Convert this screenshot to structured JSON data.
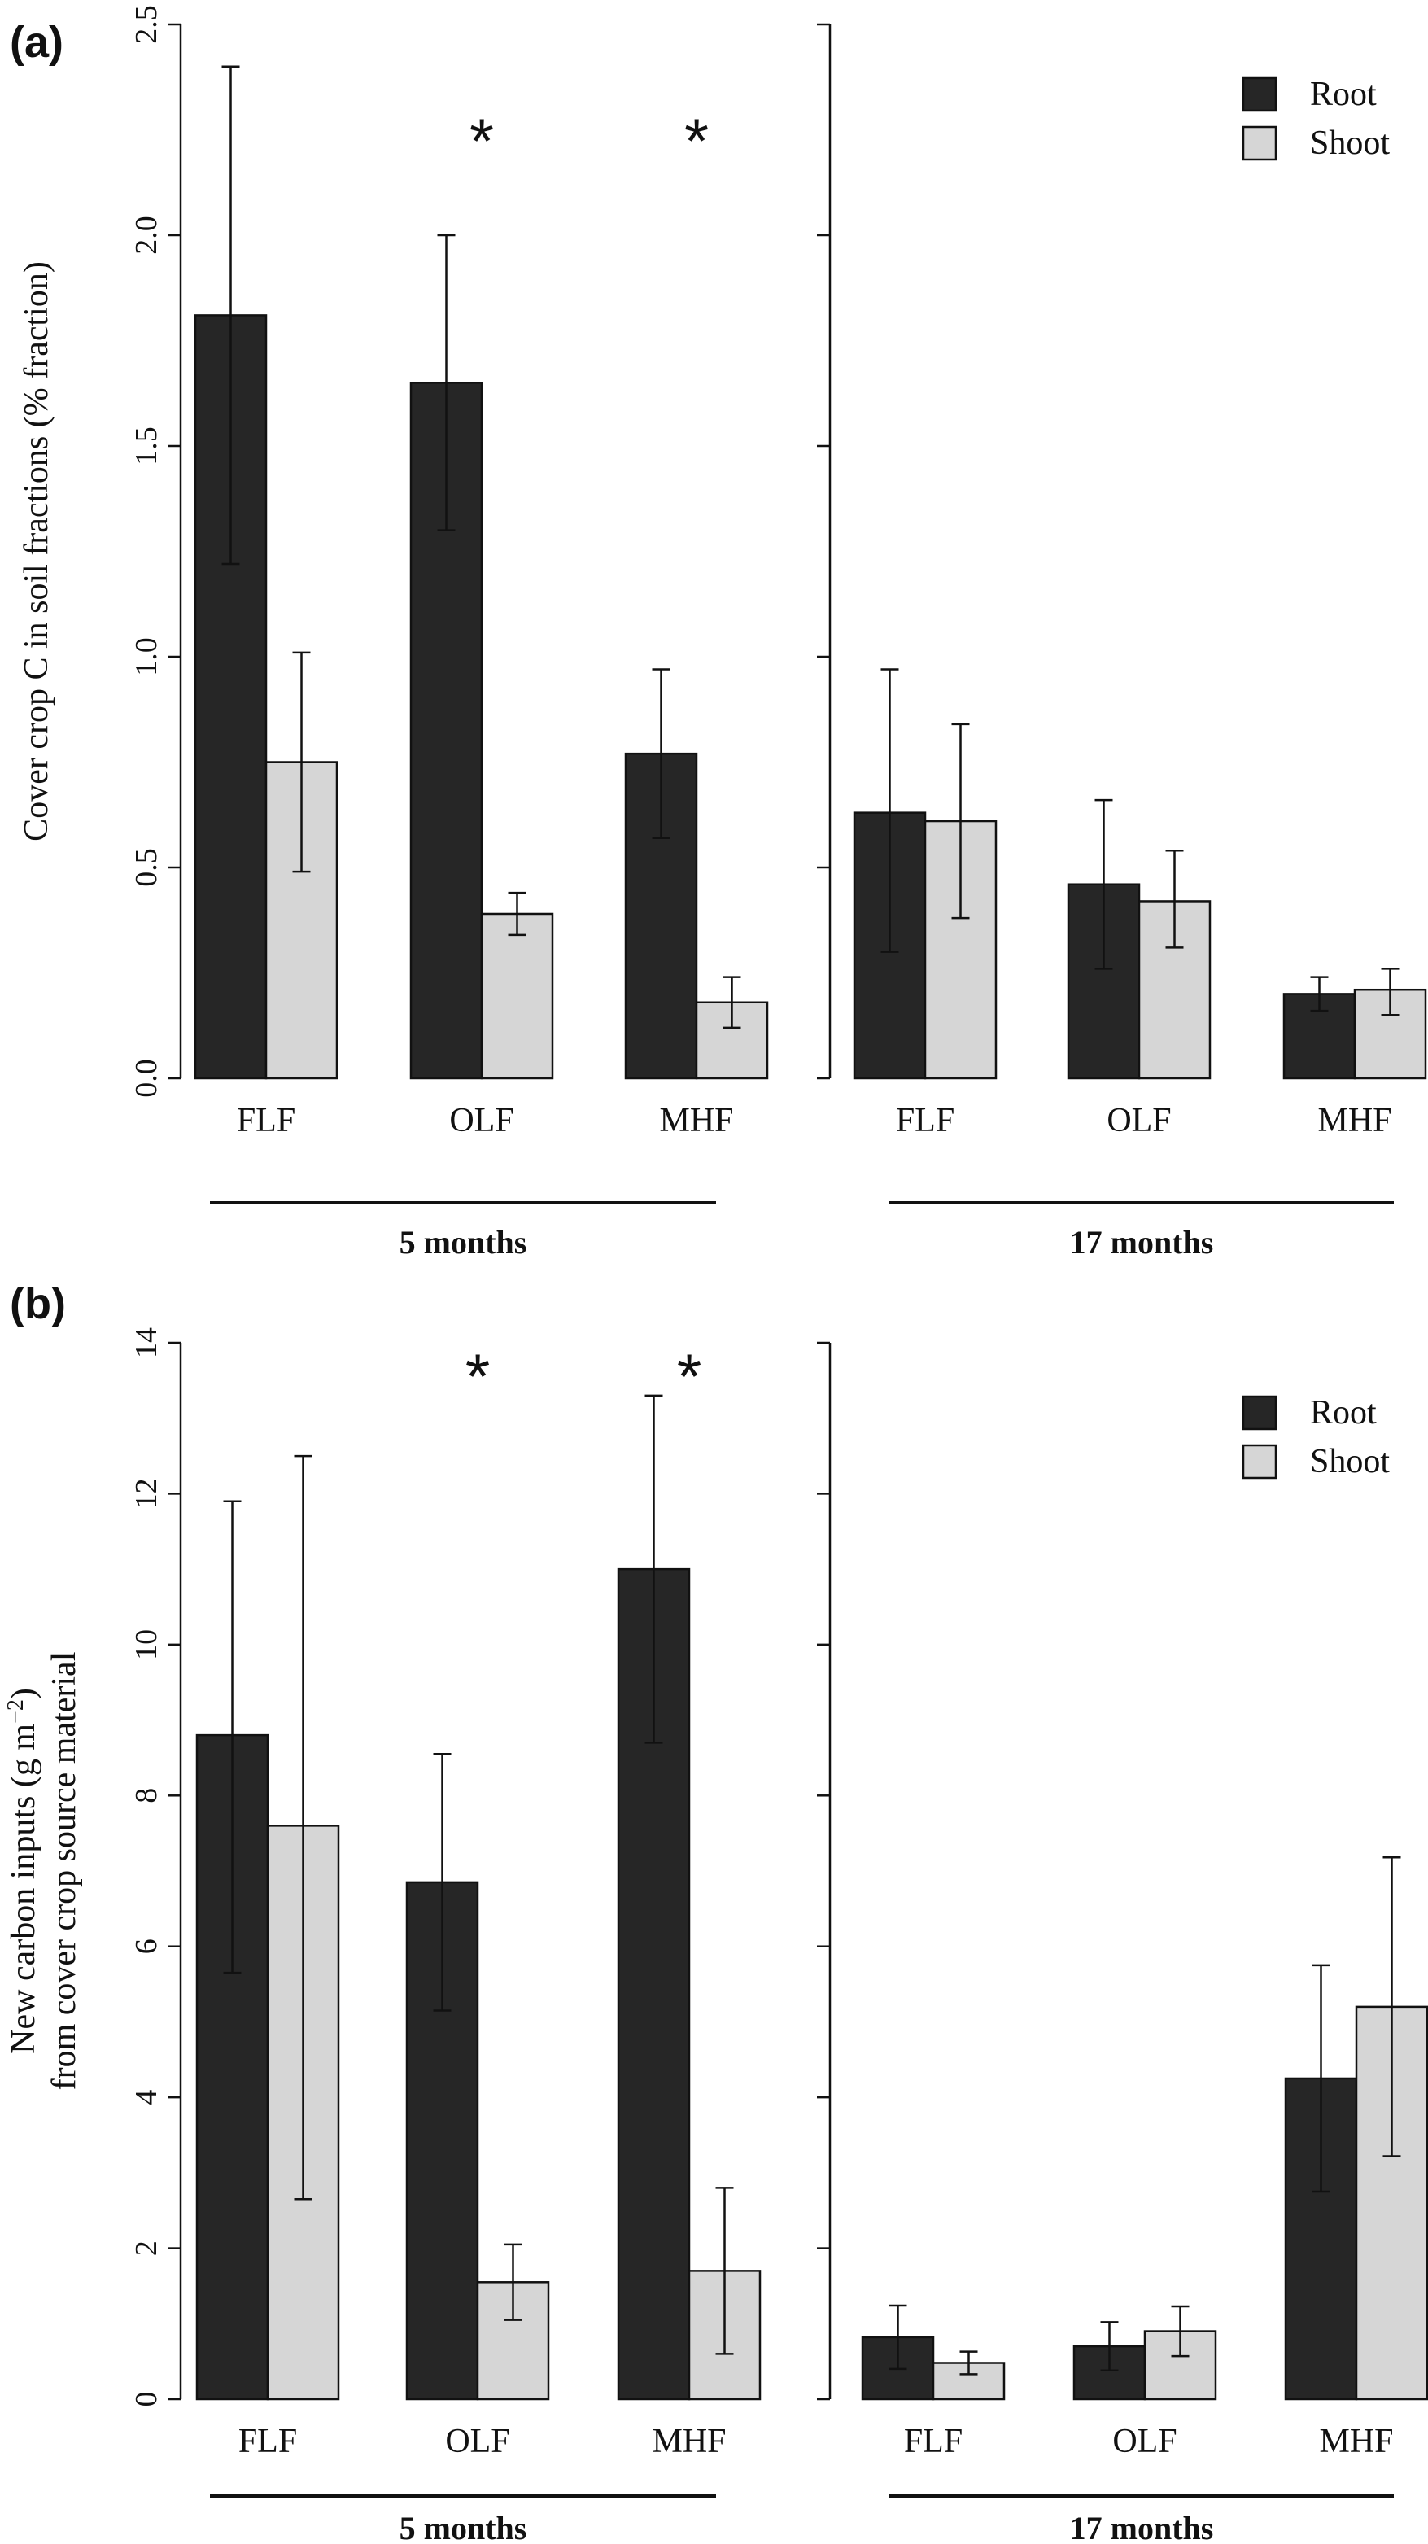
{
  "colors": {
    "root": "#262626",
    "shoot": "#d6d6d6",
    "stroke": "#111111"
  },
  "chart_data": [
    {
      "type": "bar",
      "panel_label": "(a)",
      "ylabel_lines": [
        "Cover crop C in soil fractions (% fraction)"
      ],
      "ylim": [
        0,
        2.5
      ],
      "yticks": [
        "0.0",
        "0.5",
        "1.0",
        "1.5",
        "2.0",
        "2.5"
      ],
      "grid": false,
      "legend": {
        "position": "top-right",
        "entries": [
          "Root",
          "Shoot"
        ]
      },
      "groups": [
        {
          "label": "5 months",
          "categories": [
            "FLF",
            "OLF",
            "MHF"
          ],
          "series": [
            {
              "name": "Root",
              "values": [
                1.81,
                1.65,
                0.77
              ],
              "err_low": [
                1.22,
                1.3,
                0.57
              ],
              "err_high": [
                2.4,
                2.0,
                0.97
              ]
            },
            {
              "name": "Shoot",
              "values": [
                0.75,
                0.39,
                0.18
              ],
              "err_low": [
                0.49,
                0.34,
                0.12
              ],
              "err_high": [
                1.01,
                0.44,
                0.24
              ]
            }
          ],
          "significance": [
            "",
            "*",
            "*"
          ]
        },
        {
          "label": "17 months",
          "categories": [
            "FLF",
            "OLF",
            "MHF"
          ],
          "series": [
            {
              "name": "Root",
              "values": [
                0.63,
                0.46,
                0.2
              ],
              "err_low": [
                0.3,
                0.26,
                0.16
              ],
              "err_high": [
                0.97,
                0.66,
                0.24
              ]
            },
            {
              "name": "Shoot",
              "values": [
                0.61,
                0.42,
                0.21
              ],
              "err_low": [
                0.38,
                0.31,
                0.15
              ],
              "err_high": [
                0.84,
                0.54,
                0.26
              ]
            }
          ],
          "significance": [
            "",
            "",
            ""
          ]
        }
      ]
    },
    {
      "type": "bar",
      "panel_label": "(b)",
      "ylabel_lines": [
        "New carbon inputs (g m",
        "from cover crop source material"
      ],
      "ylabel_superscript": "−2",
      "ylabel_suffix": ")",
      "ylim": [
        0,
        14
      ],
      "yticks": [
        "0",
        "2",
        "4",
        "6",
        "8",
        "10",
        "12",
        "14"
      ],
      "grid": false,
      "legend": {
        "position": "top-right",
        "entries": [
          "Root",
          "Shoot"
        ]
      },
      "groups": [
        {
          "label": "5 months",
          "categories": [
            "FLF",
            "OLF",
            "MHF"
          ],
          "series": [
            {
              "name": "Root",
              "values": [
                8.8,
                6.85,
                11.0
              ],
              "err_low": [
                5.65,
                5.15,
                8.7
              ],
              "err_high": [
                11.9,
                8.55,
                13.3
              ]
            },
            {
              "name": "Shoot",
              "values": [
                7.6,
                1.55,
                1.7
              ],
              "err_low": [
                2.65,
                1.05,
                0.6
              ],
              "err_high": [
                12.5,
                2.05,
                2.8
              ]
            }
          ],
          "significance": [
            "",
            "*",
            "*"
          ]
        },
        {
          "label": "17 months",
          "categories": [
            "FLF",
            "OLF",
            "MHF"
          ],
          "series": [
            {
              "name": "Root",
              "values": [
                0.82,
                0.7,
                4.25
              ],
              "err_low": [
                0.4,
                0.38,
                2.75
              ],
              "err_high": [
                1.24,
                1.02,
                5.75
              ]
            },
            {
              "name": "Shoot",
              "values": [
                0.48,
                0.9,
                5.2
              ],
              "err_low": [
                0.33,
                0.57,
                3.22
              ],
              "err_high": [
                0.63,
                1.23,
                7.18
              ]
            }
          ],
          "significance": [
            "",
            "",
            ""
          ]
        }
      ]
    }
  ]
}
